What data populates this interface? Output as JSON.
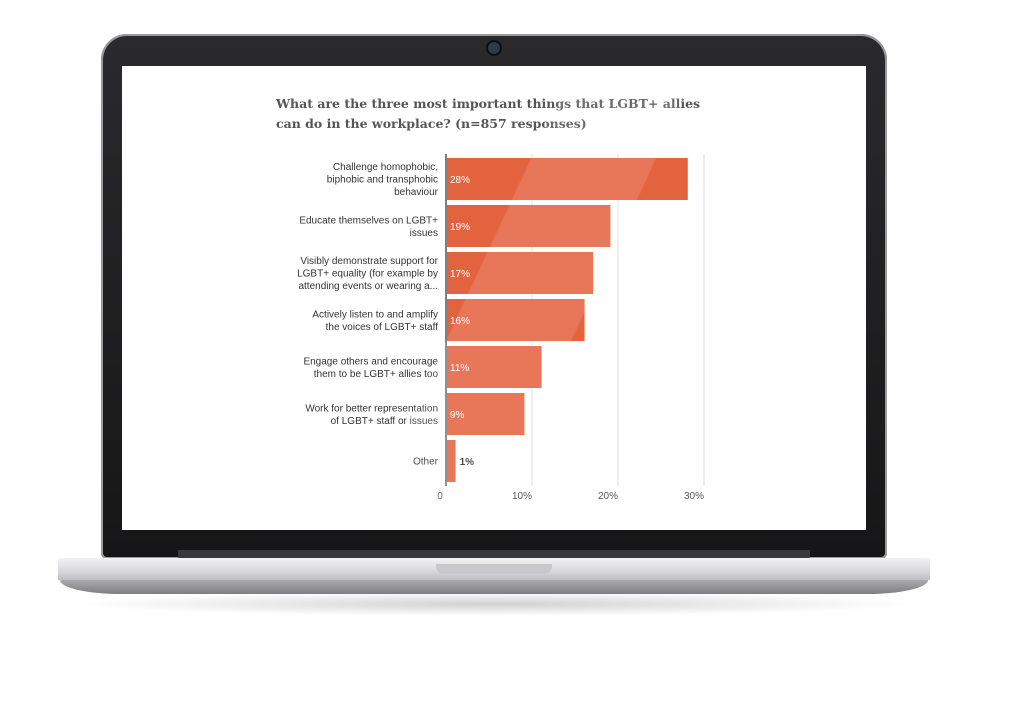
{
  "chart_data": {
    "type": "bar",
    "orientation": "horizontal",
    "title": "What are the three most important things that LGBT+ allies can do in the workplace? (n=857 responses)",
    "categories": [
      [
        "Challenge homophobic,",
        "biphobic and transphobic",
        "behaviour"
      ],
      [
        "Educate themselves on LGBT+",
        "issues"
      ],
      [
        "Visibly demonstrate support for",
        "LGBT+ equality (for example by",
        "attending events or wearing a..."
      ],
      [
        "Actively listen to and amplify",
        "the voices of LGBT+ staff"
      ],
      [
        "Engage others and encourage",
        "them to be LGBT+ allies too"
      ],
      [
        "Work for better representation",
        "of LGBT+ staff or issues"
      ],
      [
        "Other"
      ]
    ],
    "values": [
      28,
      19,
      17,
      16,
      11,
      9,
      1
    ],
    "data_labels": [
      "28%",
      "19%",
      "17%",
      "16%",
      "11%",
      "9%",
      "1%"
    ],
    "xlim": [
      0,
      30
    ],
    "xticks": [
      0,
      10,
      20,
      30
    ],
    "xtick_labels": [
      "0",
      "10%",
      "20%",
      "30%"
    ],
    "grid": true,
    "bar_color": "#e4633f",
    "label_inside_color": "#ffffff",
    "label_outside_color": "#333333"
  }
}
